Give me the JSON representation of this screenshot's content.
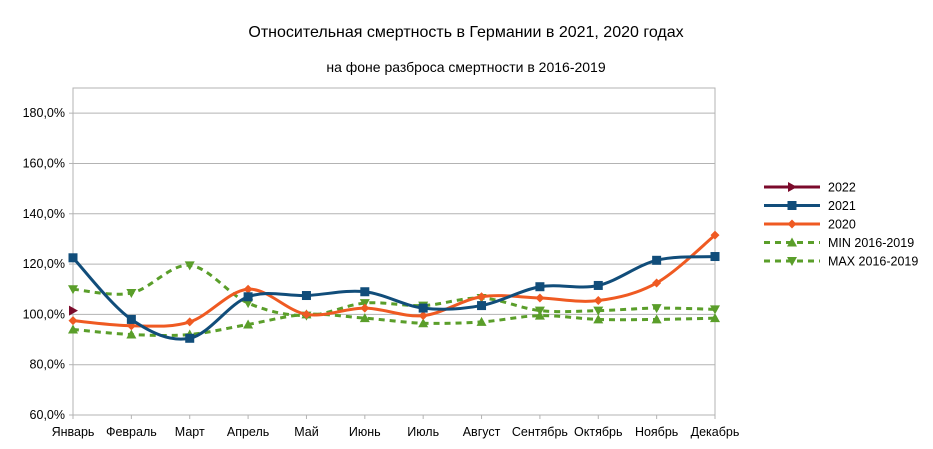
{
  "chart_data": {
    "type": "line",
    "title": "Относительная смертность в Германии в 2021, 2020 годах",
    "subtitle": "на фоне разброса смертности в 2016-2019",
    "categories": [
      "Январь",
      "Февраль",
      "Март",
      "Апрель",
      "Май",
      "Июнь",
      "Июль",
      "Август",
      "Сентябрь",
      "Октябрь",
      "Ноябрь",
      "Декабрь"
    ],
    "ylim": [
      60,
      190
    ],
    "yticks": [
      60,
      80,
      100,
      120,
      140,
      160,
      180
    ],
    "ytick_labels": [
      "60,0%",
      "80,0%",
      "100,0%",
      "120,0%",
      "140,0%",
      "160,0%",
      "180,0%"
    ],
    "grid": true,
    "legend_position": "right",
    "series": [
      {
        "name": "2022",
        "color": "#7b0a2b",
        "dash": false,
        "marker": "triangle-right",
        "values": [
          101.5,
          null,
          null,
          null,
          null,
          null,
          null,
          null,
          null,
          null,
          null,
          null
        ]
      },
      {
        "name": "2021",
        "color": "#114d7a",
        "dash": false,
        "marker": "square",
        "values": [
          122.5,
          98,
          90.5,
          107,
          107.5,
          109,
          102.5,
          103.5,
          111,
          111.5,
          121.5,
          123
        ]
      },
      {
        "name": "2020",
        "color": "#ef5a22",
        "dash": false,
        "marker": "diamond",
        "values": [
          97.5,
          95.5,
          97,
          110,
          100,
          102.5,
          99.5,
          107,
          106.5,
          105.5,
          112.5,
          131.5
        ]
      },
      {
        "name": "MIN 2016-2019",
        "color": "#5a9e2a",
        "dash": true,
        "marker": "triangle-up",
        "values": [
          94,
          92,
          92,
          96,
          100,
          98.5,
          96.5,
          97,
          99.5,
          98,
          98,
          98.5
        ]
      },
      {
        "name": "MAX 2016-2019",
        "color": "#5a9e2a",
        "dash": true,
        "marker": "triangle-down",
        "values": [
          110,
          108.5,
          119.5,
          104.5,
          99.5,
          104.5,
          103.5,
          106.5,
          101.5,
          101.5,
          102.5,
          102
        ]
      }
    ]
  }
}
